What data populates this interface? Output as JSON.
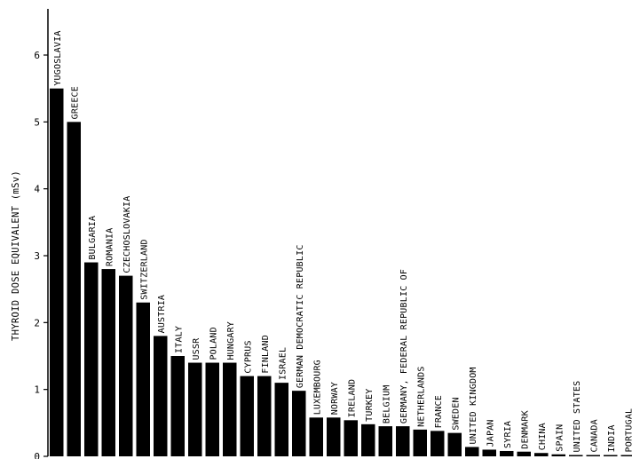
{
  "chart_data": {
    "type": "bar",
    "title": "",
    "xlabel": "",
    "ylabel": "THYROID DOSE EQUIVALENT (mSv)",
    "ylim": [
      0,
      6.5
    ],
    "yticks": [
      0,
      1,
      2,
      3,
      4,
      5,
      6
    ],
    "grid": false,
    "orientation": "vertical",
    "label_placement": "rotated vertical text above each bar",
    "bar_color": "#000000",
    "categories": [
      "YUGOSLAVIA",
      "GREECE",
      "BULGARIA",
      "ROMANIA",
      "CZECHOSLOVAKIA",
      "SWITZERLAND",
      "AUSTRIA",
      "ITALY",
      "USSR",
      "POLAND",
      "HUNGARY",
      "CYPRUS",
      "FINLAND",
      "ISRAEL",
      "GERMAN DEMOCRATIC REPUBLIC",
      "LUXEMBOURG",
      "NORWAY",
      "IRELAND",
      "TURKEY",
      "BELGIUM",
      "GERMANY, FEDERAL REPUBLIC OF",
      "NETHERLANDS",
      "FRANCE",
      "SWEDEN",
      "UNITED KINGDOM",
      "JAPAN",
      "SYRIA",
      "DENMARK",
      "CHINA",
      "SPAIN",
      "UNITED STATES",
      "CANADA",
      "INDIA",
      "PORTUGAL"
    ],
    "values": [
      5.5,
      5.0,
      2.9,
      2.8,
      2.7,
      2.3,
      1.8,
      1.5,
      1.4,
      1.4,
      1.4,
      1.2,
      1.2,
      1.1,
      0.98,
      0.58,
      0.58,
      0.54,
      0.48,
      0.45,
      0.45,
      0.4,
      0.38,
      0.35,
      0.14,
      0.1,
      0.08,
      0.07,
      0.05,
      0.03,
      0.015,
      0.01,
      0.008,
      0.005
    ]
  }
}
